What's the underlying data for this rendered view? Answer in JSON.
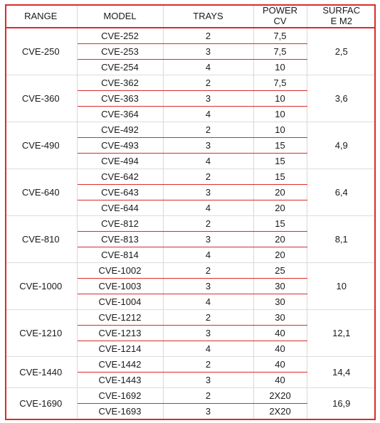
{
  "headers": {
    "range": "RANGE",
    "model": "MODEL",
    "trays": "TRAYS",
    "power_line1": "POWER",
    "power_line2": "CV",
    "surface_line1": "SURFAC",
    "surface_line2": "E M2"
  },
  "groups": [
    {
      "range": "CVE-250",
      "surface": "2,5",
      "rows": [
        {
          "model": "CVE-252",
          "trays": "2",
          "power": "7,5"
        },
        {
          "model": "CVE-253",
          "trays": "3",
          "power": "7,5"
        },
        {
          "model": "CVE-254",
          "trays": "4",
          "power": "10"
        }
      ]
    },
    {
      "range": "CVE-360",
      "surface": "3,6",
      "rows": [
        {
          "model": "CVE-362",
          "trays": "2",
          "power": "7,5"
        },
        {
          "model": "CVE-363",
          "trays": "3",
          "power": "10"
        },
        {
          "model": "CVE-364",
          "trays": "4",
          "power": "10"
        }
      ]
    },
    {
      "range": "CVE-490",
      "surface": "4,9",
      "rows": [
        {
          "model": "CVE-492",
          "trays": "2",
          "power": "10"
        },
        {
          "model": "CVE-493",
          "trays": "3",
          "power": "15"
        },
        {
          "model": "CVE-494",
          "trays": "4",
          "power": "15"
        }
      ]
    },
    {
      "range": "CVE-640",
      "surface": "6,4",
      "rows": [
        {
          "model": "CVE-642",
          "trays": "2",
          "power": "15"
        },
        {
          "model": "CVE-643",
          "trays": "3",
          "power": "20"
        },
        {
          "model": "CVE-644",
          "trays": "4",
          "power": "20"
        }
      ]
    },
    {
      "range": "CVE-810",
      "surface": "8,1",
      "rows": [
        {
          "model": "CVE-812",
          "trays": "2",
          "power": "15"
        },
        {
          "model": "CVE-813",
          "trays": "3",
          "power": "20"
        },
        {
          "model": "CVE-814",
          "trays": "4",
          "power": "20"
        }
      ]
    },
    {
      "range": "CVE-1000",
      "surface": "10",
      "rows": [
        {
          "model": "CVE-1002",
          "trays": "2",
          "power": "25"
        },
        {
          "model": "CVE-1003",
          "trays": "3",
          "power": "30"
        },
        {
          "model": "CVE-1004",
          "trays": "4",
          "power": "30"
        }
      ]
    },
    {
      "range": "CVE-1210",
      "surface": "12,1",
      "rows": [
        {
          "model": "CVE-1212",
          "trays": "2",
          "power": "30"
        },
        {
          "model": "CVE-1213",
          "trays": "3",
          "power": "40"
        },
        {
          "model": "CVE-1214",
          "trays": "4",
          "power": "40"
        }
      ]
    },
    {
      "range": "CVE-1440",
      "surface": "14,4",
      "rows": [
        {
          "model": "CVE-1442",
          "trays": "2",
          "power": "40"
        },
        {
          "model": "CVE-1443",
          "trays": "3",
          "power": "40"
        }
      ]
    },
    {
      "range": "CVE-1690",
      "surface": "16,9",
      "rows": [
        {
          "model": "CVE-1692",
          "trays": "2",
          "power": "2X20"
        },
        {
          "model": "CVE-1693",
          "trays": "3",
          "power": "2X20"
        }
      ]
    }
  ]
}
